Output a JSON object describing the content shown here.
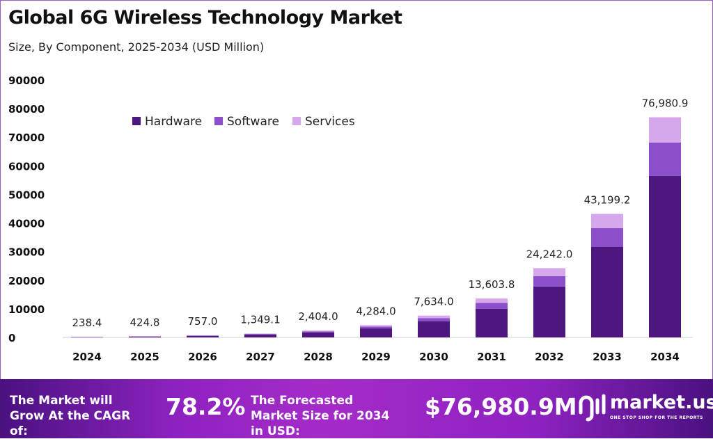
{
  "chart_data": {
    "type": "bar",
    "stacked": true,
    "title": "Global 6G Wireless Technology Market",
    "subtitle": "Size, By Component, 2025-2034 (USD Million)",
    "categories": [
      "2024",
      "2025",
      "2026",
      "2027",
      "2028",
      "2029",
      "2030",
      "2031",
      "2032",
      "2033",
      "2034"
    ],
    "totals": [
      238.4,
      424.8,
      757.0,
      1349.1,
      2404.0,
      4284.0,
      7634.0,
      13603.8,
      24242.0,
      43199.2,
      76980.9
    ],
    "total_labels": [
      "238.4",
      "424.8",
      "757.0",
      "1,349.1",
      "2,404.0",
      "4,284.0",
      "7,634.0",
      "13,603.8",
      "24,242.0",
      "43,199.2",
      "76,980.9"
    ],
    "series": [
      {
        "name": "Hardware",
        "color": "#4e1780",
        "values": [
          175.0,
          311.8,
          555.6,
          990.2,
          1764.5,
          3144.5,
          5603.4,
          9985.2,
          17793.6,
          31708.2,
          56504.0
        ]
      },
      {
        "name": "Software",
        "color": "#8b4fc9",
        "values": [
          36.0,
          64.1,
          114.3,
          203.7,
          363.0,
          646.9,
          1152.7,
          2054.2,
          3660.5,
          6523.1,
          11624.1
        ]
      },
      {
        "name": "Services",
        "color": "#d4a8ea",
        "values": [
          27.4,
          48.9,
          87.1,
          155.2,
          276.5,
          492.7,
          877.9,
          1564.4,
          2787.8,
          4967.9,
          8852.8
        ]
      }
    ],
    "ylim": [
      0,
      90000
    ],
    "yticks": [
      "0",
      "10000",
      "20000",
      "30000",
      "40000",
      "50000",
      "60000",
      "70000",
      "80000",
      "90000"
    ],
    "grid": false,
    "legend": "top-left"
  },
  "footer": {
    "cagr_label": "The Market will Grow At the CAGR of:",
    "cagr_value": "78.2%",
    "forecast_label": "The Forecasted Market Size for 2034 in USD:",
    "forecast_value": "$76,980.9M",
    "logo_name": "market.us",
    "logo_tagline": "ONE STOP SHOP FOR THE REPORTS"
  }
}
